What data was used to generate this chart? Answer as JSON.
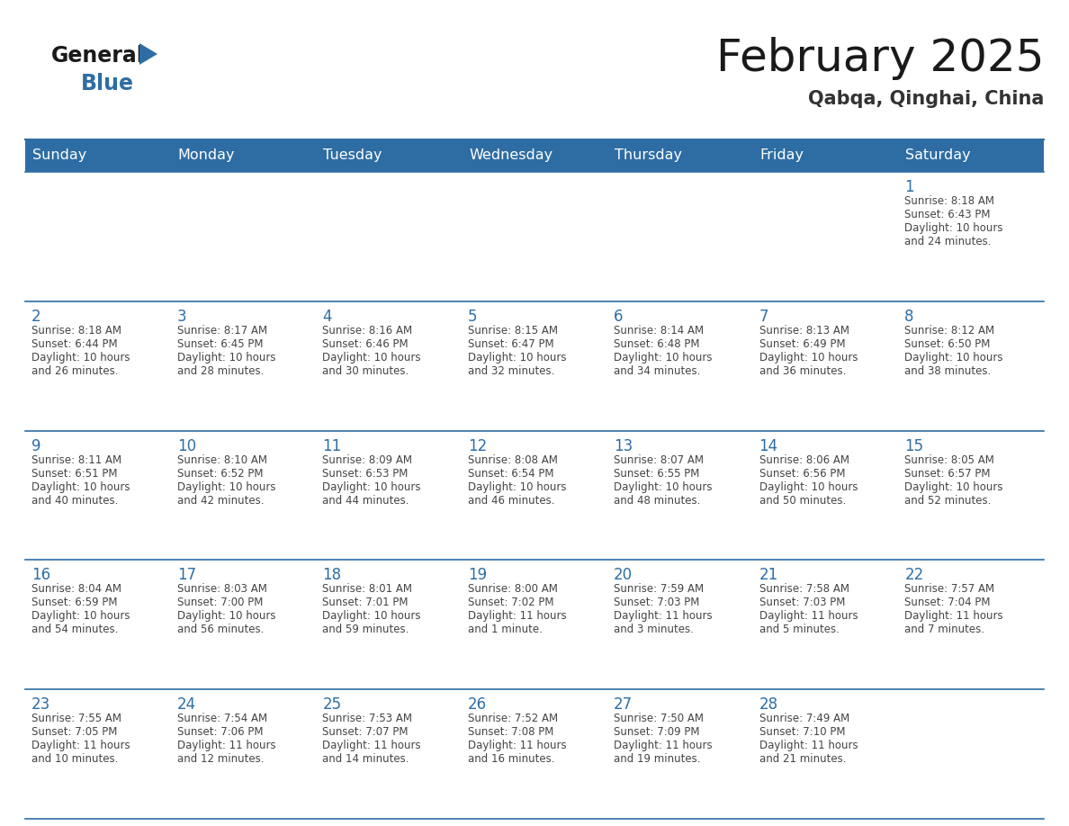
{
  "title": "February 2025",
  "subtitle": "Qabqa, Qinghai, China",
  "header_bg": "#2E6DA4",
  "header_text": "#FFFFFF",
  "header_days": [
    "Sunday",
    "Monday",
    "Tuesday",
    "Wednesday",
    "Thursday",
    "Friday",
    "Saturday"
  ],
  "divider_color": "#2E6DA4",
  "day_num_color": "#2E6DA4",
  "cell_text_color": "#444444",
  "calendar": [
    [
      null,
      null,
      null,
      null,
      null,
      null,
      {
        "day": "1",
        "sunrise": "8:18 AM",
        "sunset": "6:43 PM",
        "daylight_l1": "10 hours",
        "daylight_l2": "and 24 minutes."
      }
    ],
    [
      {
        "day": "2",
        "sunrise": "8:18 AM",
        "sunset": "6:44 PM",
        "daylight_l1": "10 hours",
        "daylight_l2": "and 26 minutes."
      },
      {
        "day": "3",
        "sunrise": "8:17 AM",
        "sunset": "6:45 PM",
        "daylight_l1": "10 hours",
        "daylight_l2": "and 28 minutes."
      },
      {
        "day": "4",
        "sunrise": "8:16 AM",
        "sunset": "6:46 PM",
        "daylight_l1": "10 hours",
        "daylight_l2": "and 30 minutes."
      },
      {
        "day": "5",
        "sunrise": "8:15 AM",
        "sunset": "6:47 PM",
        "daylight_l1": "10 hours",
        "daylight_l2": "and 32 minutes."
      },
      {
        "day": "6",
        "sunrise": "8:14 AM",
        "sunset": "6:48 PM",
        "daylight_l1": "10 hours",
        "daylight_l2": "and 34 minutes."
      },
      {
        "day": "7",
        "sunrise": "8:13 AM",
        "sunset": "6:49 PM",
        "daylight_l1": "10 hours",
        "daylight_l2": "and 36 minutes."
      },
      {
        "day": "8",
        "sunrise": "8:12 AM",
        "sunset": "6:50 PM",
        "daylight_l1": "10 hours",
        "daylight_l2": "and 38 minutes."
      }
    ],
    [
      {
        "day": "9",
        "sunrise": "8:11 AM",
        "sunset": "6:51 PM",
        "daylight_l1": "10 hours",
        "daylight_l2": "and 40 minutes."
      },
      {
        "day": "10",
        "sunrise": "8:10 AM",
        "sunset": "6:52 PM",
        "daylight_l1": "10 hours",
        "daylight_l2": "and 42 minutes."
      },
      {
        "day": "11",
        "sunrise": "8:09 AM",
        "sunset": "6:53 PM",
        "daylight_l1": "10 hours",
        "daylight_l2": "and 44 minutes."
      },
      {
        "day": "12",
        "sunrise": "8:08 AM",
        "sunset": "6:54 PM",
        "daylight_l1": "10 hours",
        "daylight_l2": "and 46 minutes."
      },
      {
        "day": "13",
        "sunrise": "8:07 AM",
        "sunset": "6:55 PM",
        "daylight_l1": "10 hours",
        "daylight_l2": "and 48 minutes."
      },
      {
        "day": "14",
        "sunrise": "8:06 AM",
        "sunset": "6:56 PM",
        "daylight_l1": "10 hours",
        "daylight_l2": "and 50 minutes."
      },
      {
        "day": "15",
        "sunrise": "8:05 AM",
        "sunset": "6:57 PM",
        "daylight_l1": "10 hours",
        "daylight_l2": "and 52 minutes."
      }
    ],
    [
      {
        "day": "16",
        "sunrise": "8:04 AM",
        "sunset": "6:59 PM",
        "daylight_l1": "10 hours",
        "daylight_l2": "and 54 minutes."
      },
      {
        "day": "17",
        "sunrise": "8:03 AM",
        "sunset": "7:00 PM",
        "daylight_l1": "10 hours",
        "daylight_l2": "and 56 minutes."
      },
      {
        "day": "18",
        "sunrise": "8:01 AM",
        "sunset": "7:01 PM",
        "daylight_l1": "10 hours",
        "daylight_l2": "and 59 minutes."
      },
      {
        "day": "19",
        "sunrise": "8:00 AM",
        "sunset": "7:02 PM",
        "daylight_l1": "11 hours",
        "daylight_l2": "and 1 minute."
      },
      {
        "day": "20",
        "sunrise": "7:59 AM",
        "sunset": "7:03 PM",
        "daylight_l1": "11 hours",
        "daylight_l2": "and 3 minutes."
      },
      {
        "day": "21",
        "sunrise": "7:58 AM",
        "sunset": "7:03 PM",
        "daylight_l1": "11 hours",
        "daylight_l2": "and 5 minutes."
      },
      {
        "day": "22",
        "sunrise": "7:57 AM",
        "sunset": "7:04 PM",
        "daylight_l1": "11 hours",
        "daylight_l2": "and 7 minutes."
      }
    ],
    [
      {
        "day": "23",
        "sunrise": "7:55 AM",
        "sunset": "7:05 PM",
        "daylight_l1": "11 hours",
        "daylight_l2": "and 10 minutes."
      },
      {
        "day": "24",
        "sunrise": "7:54 AM",
        "sunset": "7:06 PM",
        "daylight_l1": "11 hours",
        "daylight_l2": "and 12 minutes."
      },
      {
        "day": "25",
        "sunrise": "7:53 AM",
        "sunset": "7:07 PM",
        "daylight_l1": "11 hours",
        "daylight_l2": "and 14 minutes."
      },
      {
        "day": "26",
        "sunrise": "7:52 AM",
        "sunset": "7:08 PM",
        "daylight_l1": "11 hours",
        "daylight_l2": "and 16 minutes."
      },
      {
        "day": "27",
        "sunrise": "7:50 AM",
        "sunset": "7:09 PM",
        "daylight_l1": "11 hours",
        "daylight_l2": "and 19 minutes."
      },
      {
        "day": "28",
        "sunrise": "7:49 AM",
        "sunset": "7:10 PM",
        "daylight_l1": "11 hours",
        "daylight_l2": "and 21 minutes."
      },
      null
    ]
  ]
}
